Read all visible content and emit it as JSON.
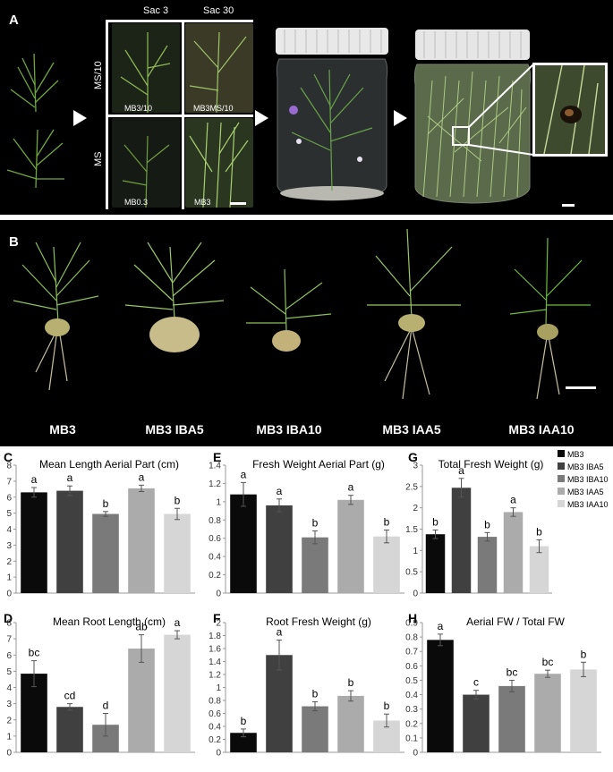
{
  "panel_a": {
    "label": "A",
    "col_labels": [
      "Sac 3",
      "Sac 30"
    ],
    "row_labels": [
      "MS/10",
      "MS"
    ],
    "cell_labels": [
      "MB3/10",
      "MB3MS/10",
      "MB0.3",
      "MB3"
    ]
  },
  "panel_b": {
    "label": "B",
    "plant_labels": [
      "MB3",
      "MB3 IBA5",
      "MB3 IBA10",
      "MB3 IAA5",
      "MB3 IAA10"
    ]
  },
  "legend": [
    "MB3",
    "MB3 IBA5",
    "MB3 IBA10",
    "MB3 IAA5",
    "MB3 IAA10"
  ],
  "colors": [
    "#0a0a0a",
    "#404040",
    "#7a7a7a",
    "#ababab",
    "#d6d6d6"
  ],
  "chart_data": [
    {
      "type": "bar",
      "panel": "C",
      "title": "Mean Length Aerial Part (cm)",
      "categories": [
        "MB3",
        "MB3 IBA5",
        "MB3 IBA10",
        "MB3 IAA5",
        "MB3 IAA10"
      ],
      "values": [
        6.3,
        6.4,
        4.95,
        6.55,
        4.95
      ],
      "errors": [
        0.3,
        0.3,
        0.15,
        0.2,
        0.35
      ],
      "letters": [
        "a",
        "a",
        "b",
        "a",
        "b"
      ],
      "ylim": [
        0,
        8
      ],
      "ticks": [
        0,
        1,
        2,
        3,
        4,
        5,
        6,
        7,
        8
      ],
      "tick_labels": [
        "0",
        "1",
        "2",
        "3",
        "4",
        "5",
        "6",
        "7",
        "8"
      ]
    },
    {
      "type": "bar",
      "panel": "E",
      "title": "Fresh Weight Aerial Part (g)",
      "categories": [
        "MB3",
        "MB3 IBA5",
        "MB3 IBA10",
        "MB3 IAA5",
        "MB3 IAA10"
      ],
      "values": [
        1.08,
        0.96,
        0.61,
        1.02,
        0.62
      ],
      "errors": [
        0.13,
        0.07,
        0.07,
        0.05,
        0.07
      ],
      "letters": [
        "a",
        "a",
        "b",
        "a",
        "b"
      ],
      "ylim": [
        0,
        1.4
      ],
      "ticks": [
        0,
        0.2,
        0.4,
        0.6,
        0.8,
        1,
        1.2,
        1.4
      ],
      "tick_labels": [
        "0",
        "0.2",
        "0.4",
        "0.6",
        "0.8",
        "1",
        "1.2",
        "1.4"
      ]
    },
    {
      "type": "bar",
      "panel": "G",
      "title": "Total Fresh Weight (g)",
      "categories": [
        "MB3",
        "MB3 IBA5",
        "MB3 IBA10",
        "MB3 IAA5",
        "MB3 IAA10"
      ],
      "values": [
        1.38,
        2.47,
        1.32,
        1.9,
        1.1
      ],
      "errors": [
        0.1,
        0.22,
        0.1,
        0.1,
        0.15
      ],
      "letters": [
        "b",
        "a",
        "b",
        "a",
        "b"
      ],
      "ylim": [
        0,
        3
      ],
      "ticks": [
        0,
        0.5,
        1,
        1.5,
        2,
        2.5,
        3
      ],
      "tick_labels": [
        "0",
        "0.5",
        "1",
        "1.5",
        "2",
        "2.5",
        "3"
      ]
    },
    {
      "type": "bar",
      "panel": "D",
      "title": "Mean Root Length (cm)",
      "categories": [
        "MB3",
        "MB3 IBA5",
        "MB3 IBA10",
        "MB3 IAA5",
        "MB3 IAA10"
      ],
      "values": [
        4.85,
        2.8,
        1.7,
        6.4,
        7.25
      ],
      "errors": [
        0.8,
        0.2,
        0.7,
        0.85,
        0.25
      ],
      "letters": [
        "bc",
        "cd",
        "d",
        "ab",
        "a"
      ],
      "ylim": [
        0,
        8
      ],
      "ticks": [
        0,
        1,
        2,
        3,
        4,
        5,
        6,
        7,
        8
      ],
      "tick_labels": [
        "0",
        "1",
        "2",
        "3",
        "4",
        "5",
        "6",
        "7",
        "8"
      ]
    },
    {
      "type": "bar",
      "panel": "F",
      "title": "Root Fresh Weight (g)",
      "categories": [
        "MB3",
        "MB3 IBA5",
        "MB3 IBA10",
        "MB3 IAA5",
        "MB3 IAA10"
      ],
      "values": [
        0.3,
        1.5,
        0.71,
        0.87,
        0.49
      ],
      "errors": [
        0.06,
        0.23,
        0.07,
        0.08,
        0.1
      ],
      "letters": [
        "b",
        "a",
        "b",
        "b",
        "b"
      ],
      "ylim": [
        0,
        2
      ],
      "ticks": [
        0,
        0.2,
        0.4,
        0.6,
        0.8,
        1,
        1.2,
        1.4,
        1.6,
        1.8,
        2
      ],
      "tick_labels": [
        "0",
        "0.2",
        "0.4",
        "0.6",
        "0.8",
        "1",
        "1.2",
        "1.4",
        "1.6",
        "1.8",
        "2"
      ]
    },
    {
      "type": "bar",
      "panel": "H",
      "title": "Aerial FW / Total FW",
      "categories": [
        "MB3",
        "MB3 IBA5",
        "MB3 IBA10",
        "MB3 IAA5",
        "MB3 IAA10"
      ],
      "values": [
        0.78,
        0.4,
        0.46,
        0.545,
        0.575
      ],
      "errors": [
        0.04,
        0.03,
        0.04,
        0.025,
        0.05
      ],
      "letters": [
        "a",
        "c",
        "bc",
        "bc",
        "b"
      ],
      "ylim": [
        0,
        0.9
      ],
      "ticks": [
        0,
        0.1,
        0.2,
        0.3,
        0.4,
        0.5,
        0.6,
        0.7,
        0.8,
        0.9
      ],
      "tick_labels": [
        "0",
        "0.1",
        "0.2",
        "0.3",
        "0.4",
        "0.5",
        "0.6",
        "0.7",
        "0.8",
        "0.9"
      ]
    }
  ]
}
